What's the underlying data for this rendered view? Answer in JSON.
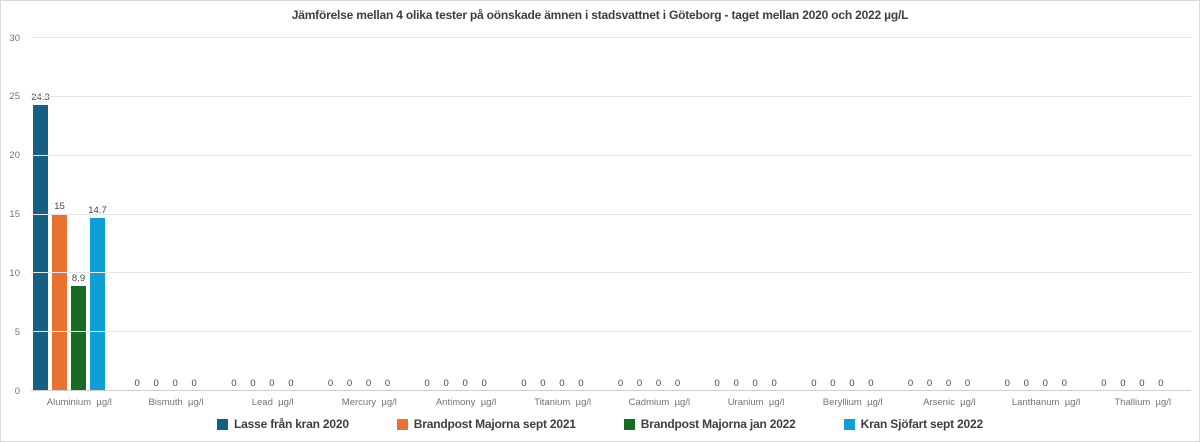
{
  "chart_data": {
    "type": "bar",
    "title": "Jämförelse mellan 4 olika tester på oönskade ämnen i stadsvattnet i Göteborg - taget mellan 2020 och 2022 µg/L",
    "categories": [
      "Aluminium  µg/l",
      "Bismuth  µg/l",
      "Lead  µg/l",
      "Mercury  µg/l",
      "Antimony  µg/l",
      "Titanium  µg/l",
      "Cadmium  µg/l",
      "Uranium  µg/l",
      "Beryllium  µg/l",
      "Arsenic  µg/l",
      "Lanthanum  µg/l",
      "Thallium  µg/l"
    ],
    "series": [
      {
        "name": "Lasse från kran 2020",
        "color": "#156082",
        "values": [
          24.3,
          0,
          0,
          0,
          0,
          0,
          0,
          0,
          0,
          0,
          0,
          0
        ]
      },
      {
        "name": "Brandpost Majorna sept 2021",
        "color": "#E97132",
        "values": [
          15,
          0,
          0,
          0,
          0,
          0,
          0,
          0,
          0,
          0,
          0,
          0
        ]
      },
      {
        "name": "Brandpost Majorna jan 2022",
        "color": "#196B24",
        "values": [
          8.9,
          0,
          0,
          0,
          0,
          0,
          0,
          0,
          0,
          0,
          0,
          0
        ]
      },
      {
        "name": "Kran Sjöfart sept 2022",
        "color": "#0F9ED5",
        "values": [
          14.7,
          0,
          0,
          0,
          0,
          0,
          0,
          0,
          0,
          0,
          0,
          0
        ]
      }
    ],
    "ylim": [
      0,
      30
    ],
    "yticks": [
      0,
      5,
      10,
      15,
      20,
      25,
      30
    ],
    "ytick_step": 5,
    "xlabel": "",
    "ylabel": "",
    "grid": true,
    "data_labels": true,
    "legend_position": "bottom"
  }
}
